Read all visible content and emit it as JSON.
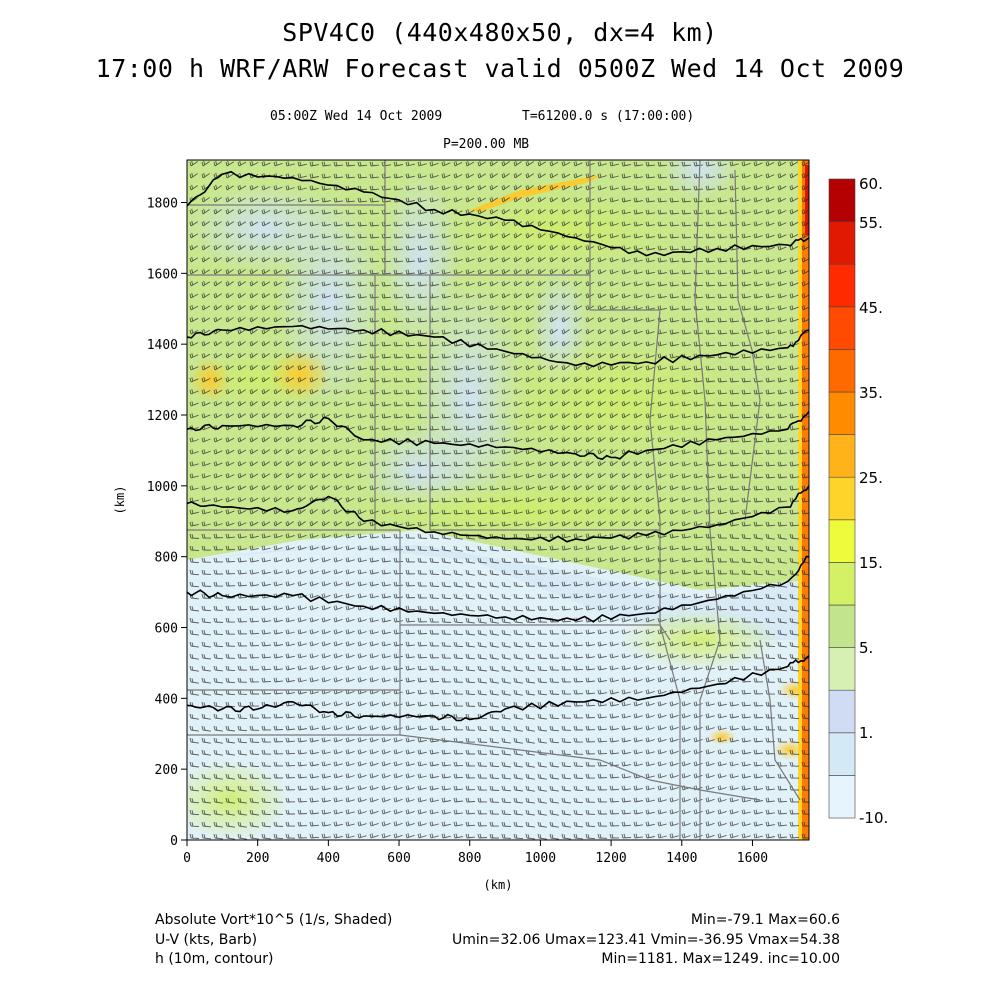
{
  "header": {
    "title_line1": "SPV4C0 (440x480x50, dx=4 km)",
    "title_line2": "17:00 h WRF/ARW Forecast valid 0500Z Wed 14 Oct 2009",
    "valid_time": "05:00Z Wed 14 Oct 2009",
    "model_time": "T=61200.0 s (17:00:00)",
    "pressure_level": "P=200.00 MB"
  },
  "footer": {
    "field1_name": "Absolute Vort*10^5 (1/s, Shaded)",
    "field1_stats": "Min=-79.1 Max=60.6",
    "field2_name": "U-V (kts, Barb)",
    "field2_stats": "Umin=32.06 Umax=123.41 Vmin=-36.95 Vmax=54.38",
    "field3_name": "h (10m, contour)",
    "field3_stats": "Min=1181. Max=1249. inc=10.00"
  },
  "chart_data": {
    "type": "heatmap",
    "xlabel": "(km)",
    "ylabel": "(km)",
    "xlim": [
      0,
      1760
    ],
    "ylim": [
      0,
      1920
    ],
    "xticks": [
      0,
      200,
      400,
      600,
      800,
      1000,
      1200,
      1400,
      1600
    ],
    "yticks": [
      0,
      200,
      400,
      600,
      800,
      1000,
      1200,
      1400,
      1600,
      1800
    ],
    "colorbar": {
      "labels": [
        "60.",
        "55.",
        "45.",
        "35.",
        "25.",
        "15.",
        "5.",
        "1.",
        "-10."
      ],
      "bins": [
        {
          "min": -10,
          "max": -5,
          "color": "#e6f5fd"
        },
        {
          "min": -5,
          "max": 1,
          "color": "#d4e9f6"
        },
        {
          "min": 1,
          "max": 3,
          "color": "#cfdcf3"
        },
        {
          "min": 3,
          "max": 5,
          "color": "#d6f0b4"
        },
        {
          "min": 5,
          "max": 10,
          "color": "#c2e48c"
        },
        {
          "min": 10,
          "max": 15,
          "color": "#d4f064"
        },
        {
          "min": 15,
          "max": 20,
          "color": "#eefa3c"
        },
        {
          "min": 20,
          "max": 25,
          "color": "#ffd42a"
        },
        {
          "min": 25,
          "max": 30,
          "color": "#ffb318"
        },
        {
          "min": 30,
          "max": 35,
          "color": "#ff8c00"
        },
        {
          "min": 35,
          "max": 40,
          "color": "#ff6a00"
        },
        {
          "min": 40,
          "max": 45,
          "color": "#ff4a00"
        },
        {
          "min": 45,
          "max": 50,
          "color": "#ff2a00"
        },
        {
          "min": 50,
          "max": 55,
          "color": "#e01a00"
        },
        {
          "min": 55,
          "max": 60,
          "color": "#b40000"
        }
      ]
    },
    "height_contours": [
      {
        "x": [
          0,
          100,
          300,
          500,
          700,
          900,
          1100,
          1300,
          1500,
          1700,
          1760
        ],
        "y": [
          1790,
          1880,
          1870,
          1830,
          1780,
          1750,
          1700,
          1650,
          1670,
          1680,
          1700
        ]
      },
      {
        "x": [
          0,
          100,
          300,
          500,
          700,
          900,
          1100,
          1300,
          1500,
          1700,
          1760
        ],
        "y": [
          1420,
          1440,
          1450,
          1440,
          1420,
          1380,
          1340,
          1350,
          1370,
          1390,
          1440
        ]
      },
      {
        "x": [
          0,
          100,
          300,
          400,
          500,
          700,
          900,
          1100,
          1200,
          1300,
          1500,
          1700,
          1760
        ],
        "y": [
          1160,
          1170,
          1170,
          1190,
          1130,
          1120,
          1110,
          1090,
          1080,
          1100,
          1130,
          1160,
          1210
        ]
      },
      {
        "x": [
          0,
          100,
          300,
          400,
          500,
          700,
          900,
          1100,
          1300,
          1500,
          1700,
          1760
        ],
        "y": [
          950,
          940,
          930,
          970,
          900,
          870,
          850,
          850,
          860,
          890,
          940,
          1000
        ]
      },
      {
        "x": [
          0,
          100,
          300,
          500,
          700,
          900,
          1100,
          1300,
          1500,
          1700,
          1760
        ],
        "y": [
          700,
          690,
          690,
          660,
          640,
          630,
          620,
          640,
          680,
          730,
          800
        ]
      },
      {
        "x": [
          0,
          100,
          200,
          300,
          400,
          500,
          700,
          800,
          900,
          1100,
          1300,
          1500,
          1700,
          1760
        ],
        "y": [
          380,
          370,
          370,
          390,
          360,
          350,
          350,
          340,
          370,
          390,
          400,
          440,
          490,
          520
        ]
      }
    ],
    "wind_barbs": {
      "spacing_km": 20,
      "general_direction_from": "northwest"
    }
  }
}
